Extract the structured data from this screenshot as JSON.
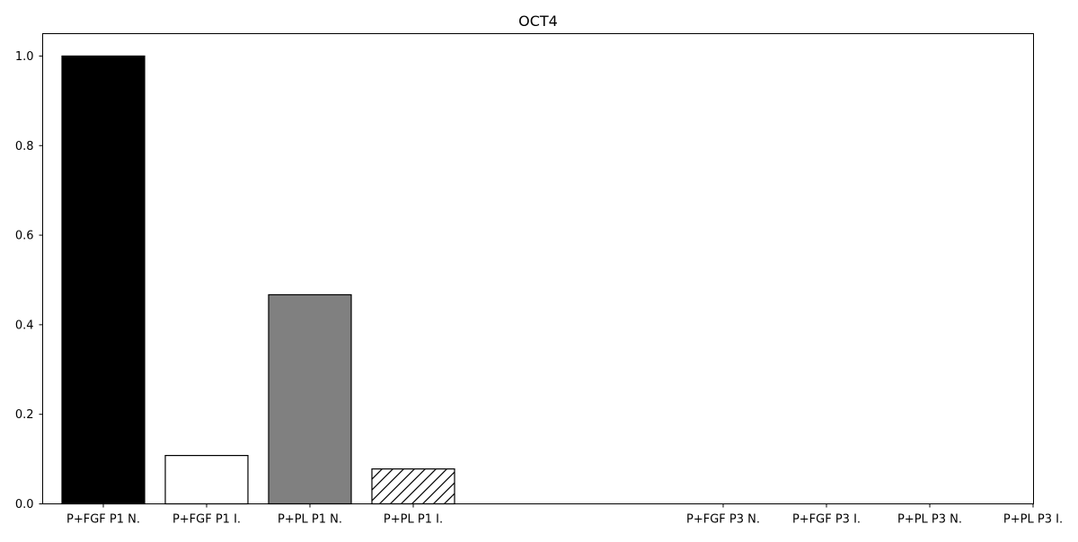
{
  "chart_data": {
    "type": "bar",
    "title": "OCT4",
    "xlabel": "",
    "ylabel": "",
    "categories": [
      "P+FGF P1 N.",
      "P+FGF P1 I.",
      "P+PL P1 N.",
      "P+PL P1 I.",
      "",
      "",
      "P+FGF P3 N.",
      "P+FGF P3 I.",
      "P+PL P3 N.",
      "P+PL P3 I."
    ],
    "values": [
      1.0,
      0.108,
      0.467,
      0.078,
      null,
      null,
      null,
      null,
      null,
      null
    ],
    "bar_fills": [
      "#000000",
      "#ffffff",
      "#808080",
      "hatch",
      null,
      null,
      null,
      null,
      null,
      null
    ],
    "bar_edge_color": "#000000",
    "ylim": [
      0,
      1.05
    ],
    "yticks": [
      0.0,
      0.2,
      0.4,
      0.6,
      0.8,
      1.0
    ],
    "ytick_labels": [
      "0.0",
      "0.2",
      "0.4",
      "0.6",
      "0.8",
      "1.0"
    ],
    "grid": false,
    "legend": "none"
  }
}
